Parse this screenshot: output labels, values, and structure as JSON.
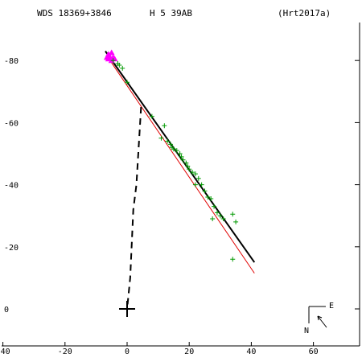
{
  "header": {
    "wds_id": "WDS 18369+3846",
    "discoverer": "H 5  39AB",
    "orbit_ref": "(Hrt2017a)"
  },
  "compass": {
    "east_label": "E",
    "north_label": "N"
  },
  "colors": {
    "background": "#ffffff",
    "axes": "#000000",
    "fitted_orbit": "#000000",
    "alt_orbit": "#e00000",
    "observations_plus": "#009900",
    "observations_triangle": "#ff00ff",
    "node_line": "#000000",
    "primary_marker": "#000000"
  },
  "chart_data": {
    "type": "scatter",
    "title": "",
    "xlabel": "",
    "ylabel": "",
    "xlim": [
      -40,
      75
    ],
    "ylim": [
      -16,
      92
    ],
    "x_ticks": [
      -40,
      -20,
      0,
      20,
      40,
      60
    ],
    "y_ticks": [
      0,
      20,
      40,
      60,
      80
    ],
    "x_tick_labels": [
      "-40",
      "-20",
      "0",
      "20",
      "40",
      "60"
    ],
    "y_tick_labels": [
      "0",
      "-20",
      "-40",
      "-60",
      "-80"
    ],
    "primary": {
      "x": 0,
      "y": 0
    },
    "fitted_orbit": {
      "from": [
        -7,
        83
      ],
      "to": [
        41,
        15
      ]
    },
    "alt_orbit": {
      "from": [
        -5.5,
        80
      ],
      "to": [
        41,
        11.5
      ]
    },
    "node_line": {
      "from": [
        4.5,
        65
      ],
      "to": [
        0,
        0
      ]
    },
    "observations_plus": [
      [
        -4.5,
        80
      ],
      [
        -3,
        79
      ],
      [
        -2.5,
        78.5
      ],
      [
        -1.5,
        77.5
      ],
      [
        0,
        73
      ],
      [
        8,
        62
      ],
      [
        12,
        59
      ],
      [
        11,
        55
      ],
      [
        13,
        54
      ],
      [
        14,
        53
      ],
      [
        14.5,
        52
      ],
      [
        15,
        51.5
      ],
      [
        16,
        51
      ],
      [
        17,
        50
      ],
      [
        17.5,
        49
      ],
      [
        18,
        48
      ],
      [
        19,
        47
      ],
      [
        19.5,
        46
      ],
      [
        20,
        45
      ],
      [
        21,
        44
      ],
      [
        22,
        43.5
      ],
      [
        23,
        42
      ],
      [
        24,
        40
      ],
      [
        22,
        40
      ],
      [
        25,
        38
      ],
      [
        26,
        36
      ],
      [
        27,
        35.5
      ],
      [
        28,
        33
      ],
      [
        29,
        31
      ],
      [
        30,
        30
      ],
      [
        31,
        29
      ],
      [
        27.5,
        29
      ],
      [
        34,
        30.5
      ],
      [
        35,
        28
      ],
      [
        34,
        16
      ]
    ],
    "observations_triangle": [
      [
        -6.5,
        81
      ],
      [
        -6,
        80.5
      ],
      [
        -5.5,
        81
      ],
      [
        -5,
        80
      ],
      [
        -4.5,
        81
      ],
      [
        -6,
        82
      ],
      [
        -5,
        82.5
      ],
      [
        -4,
        80.5
      ]
    ]
  }
}
